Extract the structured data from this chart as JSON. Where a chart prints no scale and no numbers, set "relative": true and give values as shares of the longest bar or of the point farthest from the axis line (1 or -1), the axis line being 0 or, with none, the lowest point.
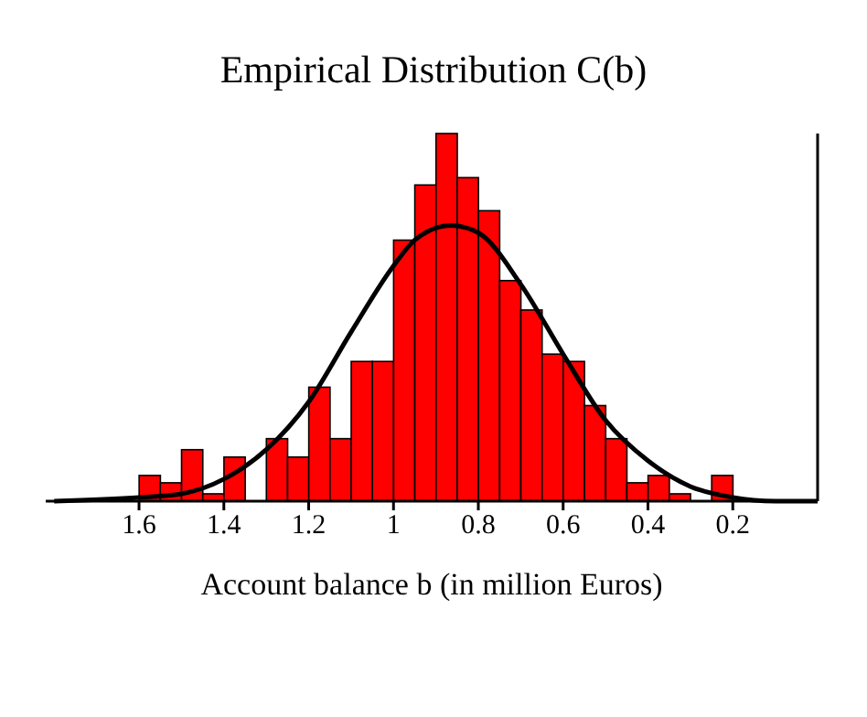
{
  "chart_data": {
    "type": "histogram",
    "title": "Empirical Distribution C(b)",
    "xlabel": "Account balance b (in million Euros)",
    "relative": true,
    "color": "#ff0000",
    "bins": [
      1.6,
      1.55,
      1.5,
      1.45,
      1.4,
      1.35,
      1.3,
      1.25,
      1.2,
      1.15,
      1.1,
      1.05,
      1.0,
      0.95,
      0.9,
      0.85,
      0.8,
      0.75,
      0.7,
      0.65,
      0.6,
      0.55,
      0.5,
      0.45,
      0.4,
      0.35,
      0.3,
      0.25,
      0.2
    ],
    "values": [
      0.07,
      0.05,
      0.14,
      0.02,
      0.12,
      0,
      0.17,
      0.12,
      0.31,
      0.17,
      0.38,
      0.38,
      0.71,
      0.86,
      1,
      0.88,
      0.79,
      0.6,
      0.52,
      0.4,
      0.38,
      0.26,
      0.17,
      0.05,
      0.07,
      0.02,
      0,
      0.07
    ],
    "series": [
      {
        "type": "line",
        "color": "#000000",
        "x": [
          1.8,
          1.6,
          1.5,
          1.4,
          1.3,
          1.2,
          1.1,
          1.0,
          0.95,
          0.865,
          0.8,
          0.7,
          0.6,
          0.5,
          0.4,
          0.3,
          0.2,
          0.1,
          0
        ],
        "values": [
          0,
          0.01,
          0.02,
          0.06,
          0.14,
          0.27,
          0.46,
          0.64,
          0.71,
          0.75,
          0.73,
          0.59,
          0.4,
          0.22,
          0.11,
          0.04,
          0.01,
          0,
          0
        ]
      }
    ],
    "xlim": [
      1.82,
      0
    ],
    "xticks": [
      1.6,
      1.4,
      1.2,
      1,
      0.8,
      0.6,
      0.4,
      0.2
    ],
    "marker": "none",
    "grid": false
  }
}
